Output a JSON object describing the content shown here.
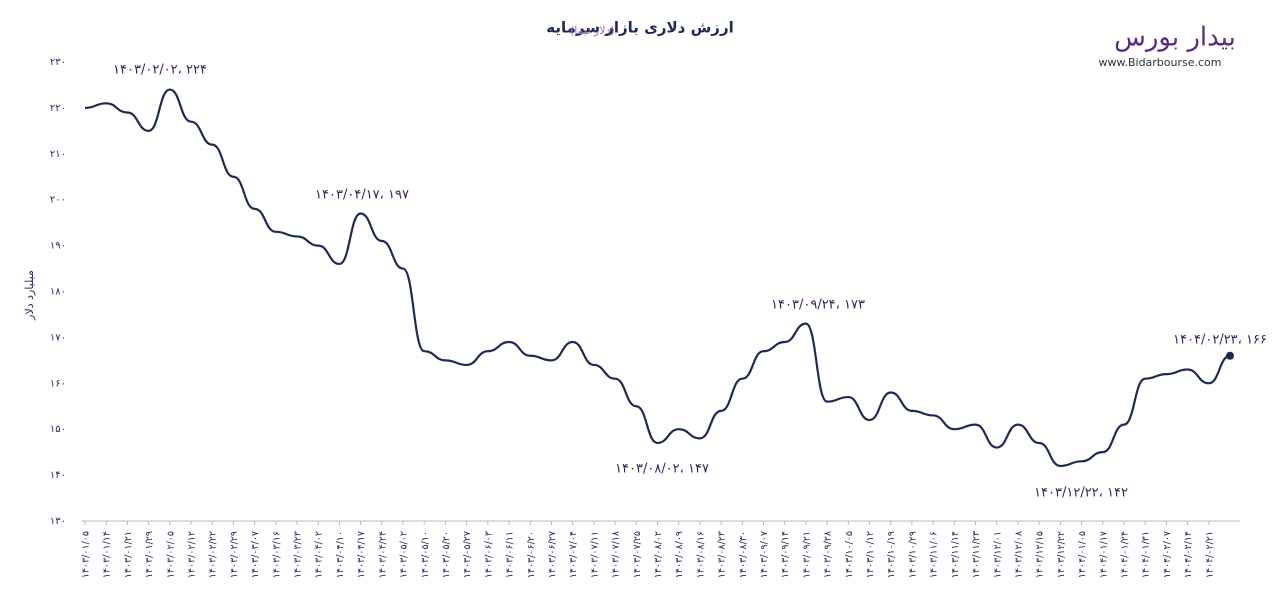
{
  "chart_data": {
    "type": "line",
    "title": "ارزش دلاری بازار سرمایه",
    "subtitle": "(دلار نیما)",
    "y_label": "میلیارد دلار",
    "categories": [
      "۱۴۰۳/۰۱/۰۵",
      "۱۴۰۳/۰۱/۱۴",
      "۱۴۰۳/۰۱/۲۱",
      "۱۴۰۳/۰۱/۲۹",
      "۱۴۰۳/۰۲/۰۵",
      "۱۴۰۳/۰۲/۱۲",
      "۱۴۰۳/۰۲/۲۲",
      "۱۴۰۳/۰۲/۲۹",
      "۱۴۰۳/۰۳/۰۷",
      "۱۴۰۳/۰۳/۱۶",
      "۱۴۰۳/۰۳/۲۳",
      "۱۴۰۳/۰۴/۰۲",
      "۱۴۰۳/۰۴/۱۰",
      "۱۴۰۳/۰۴/۱۷",
      "۱۴۰۳/۰۴/۲۴",
      "۱۴۰۳/۰۵/۰۲",
      "۱۴۰۳/۰۵/۱۰",
      "۱۴۰۳/۰۵/۲۰",
      "۱۴۰۳/۰۵/۲۷",
      "۱۴۰۳/۰۶/۰۳",
      "۱۴۰۳/۰۶/۱۱",
      "۱۴۰۳/۰۶/۲۰",
      "۱۴۰۳/۰۶/۲۷",
      "۱۴۰۳/۰۷/۰۴",
      "۱۴۰۳/۰۷/۱۱",
      "۱۴۰۳/۰۷/۱۸",
      "۱۴۰۳/۰۷/۲۵",
      "۱۴۰۳/۰۸/۰۲",
      "۱۴۰۳/۰۸/۰۹",
      "۱۴۰۳/۰۸/۱۶",
      "۱۴۰۳/۰۸/۲۳",
      "۱۴۰۳/۰۸/۳۰",
      "۱۴۰۳/۰۹/۰۷",
      "۱۴۰۳/۰۹/۱۴",
      "۱۴۰۳/۰۹/۲۱",
      "۱۴۰۳/۰۹/۲۸",
      "۱۴۰۳/۱۰/۰۵",
      "۱۴۰۳/۱۰/۱۲",
      "۱۴۰۳/۱۰/۱۹",
      "۱۴۰۳/۱۰/۲۹",
      "۱۴۰۳/۱۱/۰۶",
      "۱۴۰۳/۱۱/۱۴",
      "۱۴۰۳/۱۱/۲۳",
      "۱۴۰۳/۱۲/۰۱",
      "۱۴۰۳/۱۲/۰۸",
      "۱۴۰۳/۱۲/۱۵",
      "۱۴۰۳/۱۲/۲۲",
      "۱۴۰۴/۰۱/۰۵",
      "۱۴۰۴/۰۱/۱۷",
      "۱۴۰۴/۰۱/۲۴",
      "۱۴۰۴/۰۱/۳۱",
      "۱۴۰۴/۰۲/۰۷",
      "۱۴۰۴/۰۲/۱۴",
      "۱۴۰۴/۰۲/۲۱",
      null
    ],
    "values": [
      220,
      221,
      219,
      215,
      224,
      217,
      212,
      205,
      198,
      193,
      192,
      190,
      186,
      197,
      191,
      185,
      167,
      165,
      164,
      167,
      169,
      166,
      165,
      169,
      164,
      161,
      155,
      147,
      150,
      148,
      154,
      161,
      167,
      169,
      173,
      156,
      157,
      152,
      158,
      154,
      153,
      150,
      151,
      146,
      151,
      147,
      142,
      143,
      145,
      151,
      161,
      162,
      163,
      160,
      166
    ],
    "color": "#1f2a52",
    "ylim": [
      130,
      230
    ],
    "yticks": [
      {
        "value": 130,
        "label": "۱۳۰"
      },
      {
        "value": 140,
        "label": "۱۴۰"
      },
      {
        "value": 150,
        "label": "۱۵۰"
      },
      {
        "value": 160,
        "label": "۱۶۰"
      },
      {
        "value": 170,
        "label": "۱۷۰"
      },
      {
        "value": 180,
        "label": "۱۸۰"
      },
      {
        "value": 190,
        "label": "۱۹۰"
      },
      {
        "value": 200,
        "label": "۲۰۰"
      },
      {
        "value": 210,
        "label": "۲۱۰"
      },
      {
        "value": 220,
        "label": "۲۲۰"
      },
      {
        "value": 230,
        "label": "۲۳۰"
      }
    ],
    "grid": false,
    "annotations": [
      "۱۴۰۳/۰۲/۰۲، ۲۲۴",
      "۱۴۰۳/۰۴/۱۷، ۱۹۷",
      "۱۴۰۳/۰۸/۰۲، ۱۴۷",
      "۱۴۰۳/۰۹/۲۴، ۱۷۳",
      "۱۴۰۳/۱۲/۲۲، ۱۴۲",
      "۱۴۰۴/۰۲/۲۳، ۱۶۶"
    ]
  },
  "brand": {
    "name": "بیدار بورس",
    "url": "www.Bidarbourse.com"
  }
}
